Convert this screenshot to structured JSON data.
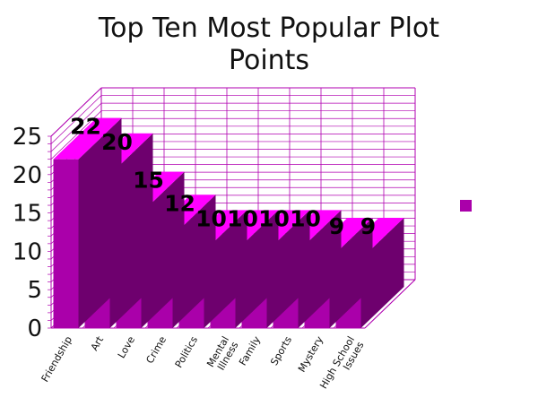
{
  "chart_data": {
    "type": "bar",
    "title_lines": [
      "Top Ten Most Popular Plot",
      "Points"
    ],
    "categories": [
      "Friendship",
      "Art",
      "Love",
      "Crime",
      "Politics",
      "Mental Illness",
      "Family",
      "Sports",
      "Mystery",
      "High School Issues"
    ],
    "category_label_lines": [
      [
        "Friendship"
      ],
      [
        "Art"
      ],
      [
        "Love"
      ],
      [
        "Crime"
      ],
      [
        "Politics"
      ],
      [
        "Mental",
        "Illness"
      ],
      [
        "Family"
      ],
      [
        "Sports"
      ],
      [
        "Mystery"
      ],
      [
        "High School",
        "Issues"
      ]
    ],
    "values": [
      22,
      20,
      15,
      12,
      10,
      10,
      10,
      10,
      9,
      9
    ],
    "data_labels": [
      "22",
      "20",
      "15",
      "12",
      "10",
      "10",
      "10",
      "10",
      "9",
      "9"
    ],
    "yticks": [
      "0",
      "5",
      "10",
      "15",
      "20",
      "25"
    ],
    "ylim": [
      0,
      25
    ],
    "minor_grid_step": 1,
    "grid": true,
    "legend": "right",
    "colors": {
      "bar_front": "#AA00AA",
      "bar_top": "#FF00FF",
      "bar_side": "#6E006E",
      "grid": "#B000B0",
      "legend": "#AA00AA"
    }
  }
}
